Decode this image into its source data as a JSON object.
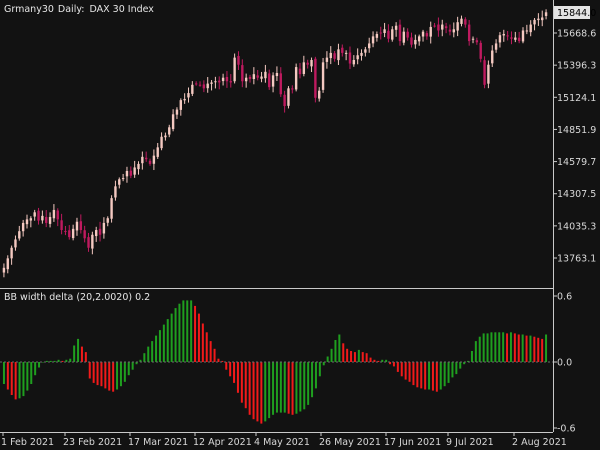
{
  "chart_data": [
    {
      "type": "candlestick",
      "symbol": "Grmany30",
      "timeframe": "Daily:",
      "instrument": "DAX 30 Index",
      "current_price_label": "15844.0",
      "y_tick_labels": [
        "15668.6",
        "15396.3",
        "15124.1",
        "14851.9",
        "14579.7",
        "14307.5",
        "14035.3",
        "13763.1"
      ],
      "y_tick_values": [
        15668.6,
        15396.3,
        15124.1,
        14851.9,
        14579.7,
        14307.5,
        14035.3,
        13763.1
      ],
      "ylim": [
        13600,
        15900
      ],
      "x_tick_labels": [
        "1 Feb 2021",
        "23 Feb 2021",
        "17 Mar 2021",
        "12 Apr 2021",
        "4 May 2021",
        "26 May 2021",
        "17 Jun 2021",
        "9 Jul 2021",
        "2 Aug 2021"
      ],
      "up_color": "#f4c9c1",
      "down_color": "#bf1a5f",
      "close": [
        13680,
        13760,
        13850,
        13920,
        13990,
        14060,
        14090,
        14100,
        14150,
        14080,
        14120,
        14060,
        14110,
        14170,
        14090,
        14000,
        13990,
        13940,
        14010,
        14070,
        14000,
        13930,
        13850,
        13960,
        14000,
        13960,
        14060,
        14100,
        14270,
        14370,
        14430,
        14440,
        14500,
        14460,
        14530,
        14560,
        14620,
        14600,
        14560,
        14630,
        14700,
        14790,
        14800,
        14870,
        14980,
        15020,
        15100,
        15110,
        15160,
        15230,
        15240,
        15230,
        15200,
        15240,
        15250,
        15260,
        15250,
        15290,
        15260,
        15250,
        15460,
        15400,
        15260,
        15290,
        15280,
        15320,
        15290,
        15300,
        15340,
        15210,
        15310,
        15330,
        15150,
        15050,
        15200,
        15190,
        15380,
        15320,
        15420,
        15400,
        15440,
        15120,
        15180,
        15420,
        15460,
        15500,
        15450,
        15530,
        15500,
        15500,
        15410,
        15440,
        15480,
        15500,
        15530,
        15580,
        15640,
        15660,
        15670,
        15700,
        15620,
        15700,
        15730,
        15600,
        15680,
        15630,
        15570,
        15610,
        15640,
        15680,
        15640,
        15720,
        15730,
        15690,
        15740,
        15710,
        15680,
        15700,
        15760,
        15790,
        15740,
        15600,
        15620,
        15590,
        15450,
        15230,
        15400,
        15520,
        15580,
        15650,
        15660,
        15640,
        15620,
        15630,
        15600,
        15690,
        15690,
        15740,
        15780,
        15790,
        15800,
        15844
      ],
      "annotations": [],
      "grid": false
    },
    {
      "type": "histogram",
      "title": "BB width delta (20,2.0020) 0.2",
      "y_tick_labels": [
        "0.6",
        "0.0",
        "-0.6"
      ],
      "y_tick_values": [
        0.6,
        0.0,
        -0.6
      ],
      "ylim": [
        -0.67,
        0.67
      ],
      "rise_color": "#1f9f1f",
      "fall_color": "#f21a1a",
      "values": [
        -0.2,
        -0.25,
        -0.3,
        -0.34,
        -0.33,
        -0.31,
        -0.26,
        -0.2,
        -0.12,
        -0.05,
        0.0,
        0.01,
        0.01,
        0.01,
        0.02,
        0.01,
        0.02,
        0.03,
        0.15,
        0.21,
        0.14,
        0.09,
        -0.15,
        -0.19,
        -0.21,
        -0.22,
        -0.24,
        -0.26,
        -0.27,
        -0.25,
        -0.22,
        -0.18,
        -0.12,
        -0.07,
        -0.02,
        0.02,
        0.08,
        0.14,
        0.19,
        0.24,
        0.29,
        0.34,
        0.39,
        0.44,
        0.49,
        0.53,
        0.56,
        0.56,
        0.56,
        0.51,
        0.44,
        0.35,
        0.27,
        0.19,
        0.12,
        0.03,
        0.01,
        -0.07,
        -0.13,
        -0.19,
        -0.28,
        -0.37,
        -0.42,
        -0.48,
        -0.52,
        -0.54,
        -0.56,
        -0.54,
        -0.51,
        -0.48,
        -0.46,
        -0.46,
        -0.46,
        -0.47,
        -0.48,
        -0.47,
        -0.45,
        -0.43,
        -0.39,
        -0.32,
        -0.24,
        -0.13,
        -0.03,
        0.05,
        0.12,
        0.2,
        0.25,
        0.17,
        0.12,
        0.1,
        0.09,
        0.11,
        0.09,
        0.08,
        0.04,
        0.02,
        0.01,
        0.02,
        0.02,
        -0.02,
        -0.04,
        -0.09,
        -0.13,
        -0.16,
        -0.18,
        -0.21,
        -0.23,
        -0.24,
        -0.25,
        -0.25,
        -0.26,
        -0.27,
        -0.25,
        -0.22,
        -0.19,
        -0.14,
        -0.11,
        -0.06,
        -0.02,
        0.01,
        0.1,
        0.19,
        0.23,
        0.26,
        0.26,
        0.27,
        0.27,
        0.27,
        0.27,
        0.26,
        0.27,
        0.26,
        0.25,
        0.25,
        0.24,
        0.24,
        0.23,
        0.22,
        0.21,
        0.25
      ],
      "grid": false
    }
  ]
}
